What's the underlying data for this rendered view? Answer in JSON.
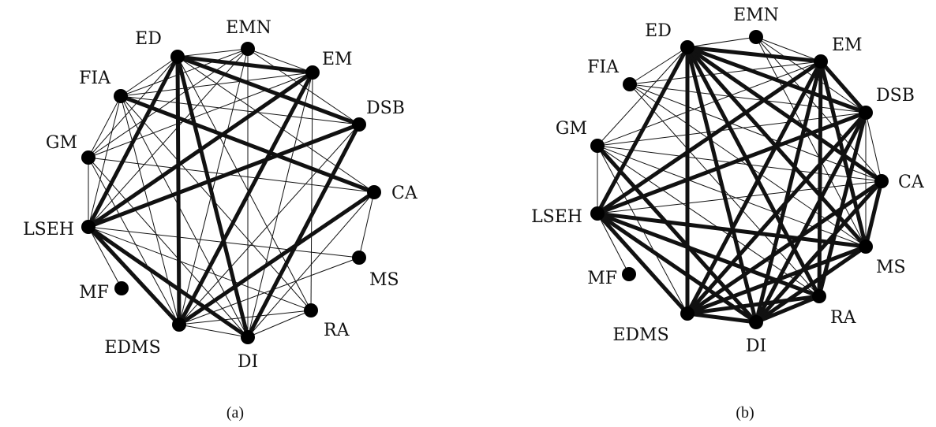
{
  "colors": {
    "edge": "#111111",
    "node": "#000000",
    "background": "#ffffff"
  },
  "panels": [
    {
      "id": "a",
      "caption": "(a)",
      "nodes": [
        {
          "id": "ED",
          "label": "ED"
        },
        {
          "id": "EMN",
          "label": "EMN"
        },
        {
          "id": "EM",
          "label": "EM"
        },
        {
          "id": "DSB",
          "label": "DSB"
        },
        {
          "id": "CA",
          "label": "CA"
        },
        {
          "id": "MS",
          "label": "MS"
        },
        {
          "id": "RA",
          "label": "RA"
        },
        {
          "id": "DI",
          "label": "DI"
        },
        {
          "id": "EDMS",
          "label": "EDMS"
        },
        {
          "id": "MF",
          "label": "MF"
        },
        {
          "id": "LSEH",
          "label": "LSEH"
        },
        {
          "id": "GM",
          "label": "GM"
        },
        {
          "id": "FIA",
          "label": "FIA"
        }
      ],
      "thick_edges": [
        [
          "ED",
          "EM"
        ],
        [
          "ED",
          "DSB"
        ],
        [
          "ED",
          "LSEH"
        ],
        [
          "ED",
          "EDMS"
        ],
        [
          "ED",
          "DI"
        ],
        [
          "EM",
          "LSEH"
        ],
        [
          "EM",
          "EDMS"
        ],
        [
          "DSB",
          "LSEH"
        ],
        [
          "DSB",
          "DI"
        ],
        [
          "FIA",
          "CA"
        ],
        [
          "CA",
          "EDMS"
        ],
        [
          "LSEH",
          "EDMS"
        ],
        [
          "LSEH",
          "DI"
        ]
      ],
      "thin_edges": [
        [
          "ED",
          "EMN"
        ],
        [
          "ED",
          "FIA"
        ],
        [
          "ED",
          "GM"
        ],
        [
          "ED",
          "CA"
        ],
        [
          "ED",
          "RA"
        ],
        [
          "EMN",
          "EM"
        ],
        [
          "EMN",
          "FIA"
        ],
        [
          "EMN",
          "GM"
        ],
        [
          "EMN",
          "LSEH"
        ],
        [
          "EMN",
          "DI"
        ],
        [
          "EMN",
          "EDMS"
        ],
        [
          "EMN",
          "DSB"
        ],
        [
          "EM",
          "FIA"
        ],
        [
          "EM",
          "GM"
        ],
        [
          "EM",
          "RA"
        ],
        [
          "EM",
          "DI"
        ],
        [
          "DSB",
          "FIA"
        ],
        [
          "DSB",
          "EDMS"
        ],
        [
          "FIA",
          "GM"
        ],
        [
          "FIA",
          "LSEH"
        ],
        [
          "FIA",
          "RA"
        ],
        [
          "FIA",
          "DI"
        ],
        [
          "FIA",
          "EDMS"
        ],
        [
          "CA",
          "MS"
        ],
        [
          "CA",
          "GM"
        ],
        [
          "CA",
          "DI"
        ],
        [
          "GM",
          "LSEH"
        ],
        [
          "GM",
          "EDMS"
        ],
        [
          "GM",
          "DI"
        ],
        [
          "LSEH",
          "MF"
        ],
        [
          "LSEH",
          "RA"
        ],
        [
          "LSEH",
          "MS"
        ],
        [
          "EDMS",
          "DI"
        ],
        [
          "EDMS",
          "RA"
        ],
        [
          "EDMS",
          "MS"
        ],
        [
          "DI",
          "RA"
        ]
      ]
    },
    {
      "id": "b",
      "caption": "(b)",
      "nodes": [
        {
          "id": "ED",
          "label": "ED"
        },
        {
          "id": "EMN",
          "label": "EMN"
        },
        {
          "id": "EM",
          "label": "EM"
        },
        {
          "id": "DSB",
          "label": "DSB"
        },
        {
          "id": "CA",
          "label": "CA"
        },
        {
          "id": "MS",
          "label": "MS"
        },
        {
          "id": "RA",
          "label": "RA"
        },
        {
          "id": "DI",
          "label": "DI"
        },
        {
          "id": "EDMS",
          "label": "EDMS"
        },
        {
          "id": "MF",
          "label": "MF"
        },
        {
          "id": "LSEH",
          "label": "LSEH"
        },
        {
          "id": "GM",
          "label": "GM"
        },
        {
          "id": "FIA",
          "label": "FIA"
        }
      ],
      "thick_edges": [
        [
          "ED",
          "EM"
        ],
        [
          "ED",
          "EDMS"
        ],
        [
          "ED",
          "DI"
        ],
        [
          "ED",
          "RA"
        ],
        [
          "ED",
          "MS"
        ],
        [
          "ED",
          "CA"
        ],
        [
          "ED",
          "DSB"
        ],
        [
          "ED",
          "LSEH"
        ],
        [
          "EM",
          "DSB"
        ],
        [
          "EM",
          "LSEH"
        ],
        [
          "EM",
          "EDMS"
        ],
        [
          "EM",
          "DI"
        ],
        [
          "EM",
          "RA"
        ],
        [
          "EM",
          "MS"
        ],
        [
          "DSB",
          "LSEH"
        ],
        [
          "DSB",
          "EDMS"
        ],
        [
          "DSB",
          "DI"
        ],
        [
          "DSB",
          "RA"
        ],
        [
          "CA",
          "MS"
        ],
        [
          "CA",
          "DI"
        ],
        [
          "CA",
          "EDMS"
        ],
        [
          "MS",
          "LSEH"
        ],
        [
          "MS",
          "DI"
        ],
        [
          "MS",
          "EDMS"
        ],
        [
          "RA",
          "LSEH"
        ],
        [
          "RA",
          "EDMS"
        ],
        [
          "RA",
          "DI"
        ],
        [
          "LSEH",
          "EDMS"
        ],
        [
          "LSEH",
          "DI"
        ],
        [
          "EDMS",
          "DI"
        ],
        [
          "GM",
          "DI"
        ]
      ],
      "thin_edges": [
        [
          "ED",
          "EMN"
        ],
        [
          "ED",
          "FIA"
        ],
        [
          "ED",
          "GM"
        ],
        [
          "EMN",
          "EM"
        ],
        [
          "EMN",
          "DSB"
        ],
        [
          "EMN",
          "MS"
        ],
        [
          "EMN",
          "CA"
        ],
        [
          "EM",
          "FIA"
        ],
        [
          "EM",
          "GM"
        ],
        [
          "DSB",
          "CA"
        ],
        [
          "DSB",
          "MS"
        ],
        [
          "FIA",
          "CA"
        ],
        [
          "FIA",
          "RA"
        ],
        [
          "FIA",
          "MS"
        ],
        [
          "FIA",
          "DSB"
        ],
        [
          "GM",
          "LSEH"
        ],
        [
          "GM",
          "CA"
        ],
        [
          "GM",
          "MS"
        ],
        [
          "GM",
          "EDMS"
        ],
        [
          "GM",
          "RA"
        ],
        [
          "GM",
          "DSB"
        ],
        [
          "LSEH",
          "MF"
        ],
        [
          "LSEH",
          "CA"
        ],
        [
          "EDMS",
          "CA"
        ]
      ]
    }
  ]
}
